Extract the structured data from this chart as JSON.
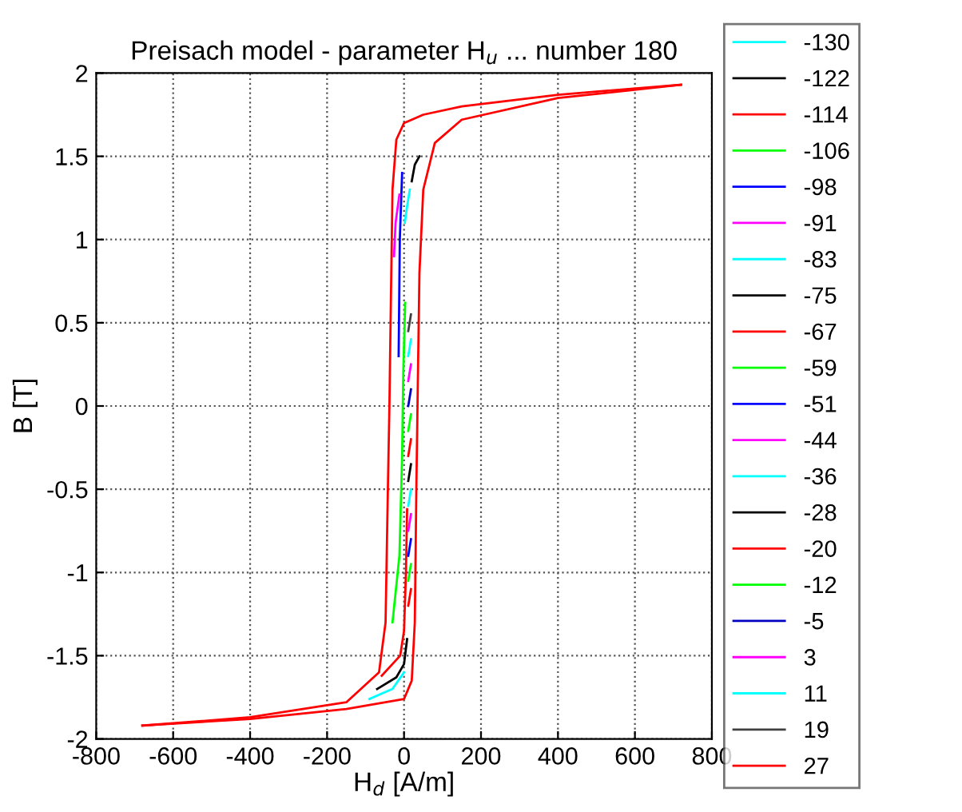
{
  "chart_data": {
    "type": "line",
    "title": "Preisach model - parameter H$_{u}$ ... number 180",
    "xlabel": "H$_{d}$ [A/m]",
    "ylabel": "B [T]",
    "xlim": [
      -800,
      800
    ],
    "xticks": [
      -800,
      -600,
      -400,
      -200,
      0,
      200,
      400,
      600,
      800
    ],
    "ylim": [
      -2,
      2
    ],
    "yticks": [
      -2,
      -1.5,
      -1,
      -0.5,
      0,
      0.5,
      1,
      1.5,
      2
    ],
    "grid": true,
    "legend": "right",
    "line_style": "solid",
    "marker": "none",
    "series": [
      {
        "name": "-130",
        "color": "#00ffff",
        "x": [
          -90,
          -30,
          0
        ],
        "values": [
          -1.76,
          -1.7,
          -1.6
        ]
      },
      {
        "name": "-122",
        "color": "#000000",
        "x": [
          -70,
          -20,
          0,
          8
        ],
        "values": [
          -1.7,
          -1.63,
          -1.55,
          -1.4
        ]
      },
      {
        "name": "-114",
        "color": "#ff0000",
        "x": [
          -58,
          -10,
          0,
          5,
          8
        ],
        "values": [
          -1.62,
          -1.5,
          -1.35,
          -1.0,
          -0.62
        ]
      },
      {
        "name": "-106",
        "color": "#00ff00",
        "x": [
          -30,
          -12,
          -5,
          -2,
          3
        ],
        "values": [
          -1.3,
          -0.9,
          -0.3,
          0.2,
          0.62
        ]
      },
      {
        "name": "-98",
        "color": "#0000ff",
        "x": [
          -14,
          -11,
          -5
        ],
        "values": [
          0.3,
          1.0,
          1.4
        ]
      },
      {
        "name": "-91",
        "color": "#ff00ff",
        "x": [
          -26,
          -22,
          -12
        ],
        "values": [
          0.9,
          1.1,
          1.27
        ]
      },
      {
        "name": "-83",
        "color": "#00ffff",
        "x": [
          2,
          8,
          15
        ],
        "values": [
          1.1,
          1.2,
          1.3
        ]
      },
      {
        "name": "-75",
        "color": "#000000",
        "x": [
          20,
          28,
          40
        ],
        "values": [
          1.35,
          1.45,
          1.5
        ]
      },
      {
        "name": "-67",
        "color": "#ff0000",
        "x": [
          11,
          18
        ],
        "values": [
          -1.2,
          -1.1
        ]
      },
      {
        "name": "-59",
        "color": "#00ff00",
        "x": [
          11,
          18
        ],
        "values": [
          -1.05,
          -0.95
        ]
      },
      {
        "name": "-51",
        "color": "#0000ff",
        "x": [
          11,
          18
        ],
        "values": [
          -0.9,
          -0.8
        ]
      },
      {
        "name": "-44",
        "color": "#ff00ff",
        "x": [
          11,
          18
        ],
        "values": [
          -0.75,
          -0.65
        ]
      },
      {
        "name": "-36",
        "color": "#00ffff",
        "x": [
          11,
          18
        ],
        "values": [
          -0.6,
          -0.5
        ]
      },
      {
        "name": "-28",
        "color": "#000000",
        "x": [
          11,
          18
        ],
        "values": [
          -0.45,
          -0.35
        ]
      },
      {
        "name": "-20",
        "color": "#ff0000",
        "x": [
          11,
          18
        ],
        "values": [
          -0.3,
          -0.2
        ]
      },
      {
        "name": "-12",
        "color": "#00ff00",
        "x": [
          11,
          18
        ],
        "values": [
          -0.15,
          -0.05
        ]
      },
      {
        "name": "-5",
        "color": "#0000c0",
        "x": [
          11,
          18
        ],
        "values": [
          0,
          0.1
        ]
      },
      {
        "name": "3",
        "color": "#ff00ff",
        "x": [
          11,
          18
        ],
        "values": [
          0.15,
          0.25
        ]
      },
      {
        "name": "11",
        "color": "#00ffff",
        "x": [
          11,
          18
        ],
        "values": [
          0.3,
          0.4
        ]
      },
      {
        "name": "19",
        "color": "#404040",
        "x": [
          11,
          18
        ],
        "values": [
          0.45,
          0.55
        ]
      },
      {
        "name": "27",
        "color": "#ff0000",
        "x": [
          720,
          400,
          150,
          50,
          0,
          -20,
          -30,
          -35,
          -38,
          -42,
          -48,
          -65,
          -150,
          -400,
          -680
        ],
        "values": [
          1.93,
          1.87,
          1.8,
          1.75,
          1.7,
          1.6,
          1.3,
          0.5,
          0,
          -0.5,
          -1.3,
          -1.6,
          -1.78,
          -1.87,
          -1.92
        ]
      },
      {
        "color": "#ff0000",
        "x": [
          -680,
          -400,
          -150,
          0,
          20,
          28,
          32,
          35,
          40,
          50,
          80,
          150,
          400,
          720
        ],
        "values": [
          -1.92,
          -1.88,
          -1.82,
          -1.76,
          -1.65,
          -1.3,
          -0.5,
          0,
          0.8,
          1.3,
          1.58,
          1.72,
          1.85,
          1.93
        ]
      }
    ]
  }
}
